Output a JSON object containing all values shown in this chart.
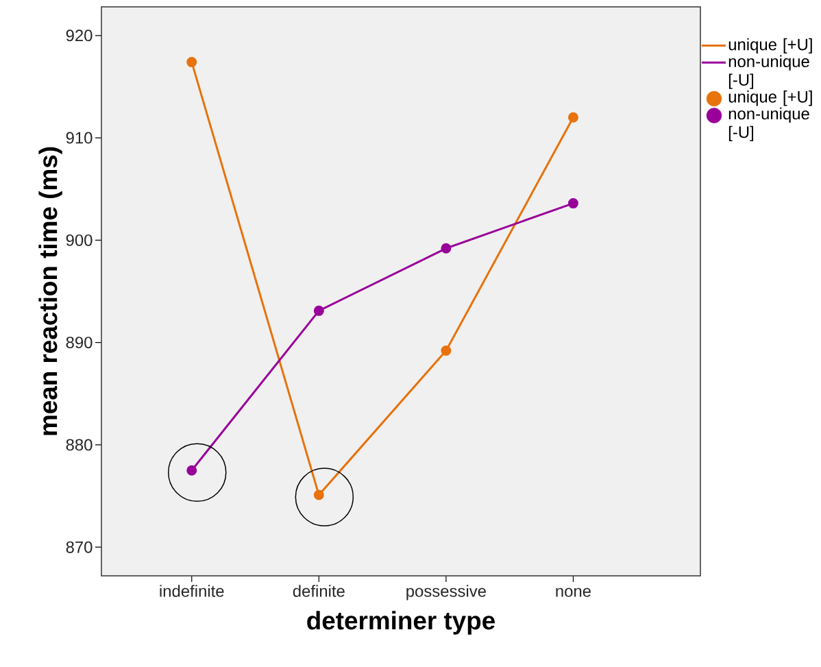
{
  "chart_data": {
    "type": "line",
    "xlabel": "determiner type",
    "ylabel": "mean reaction time (ms)",
    "categories": [
      "indefinite",
      "definite",
      "possessive",
      "none"
    ],
    "series": [
      {
        "name": "unique [+U]",
        "color": "#e8720c",
        "values": [
          917.4,
          875.1,
          889.2,
          912.0
        ]
      },
      {
        "name": "non-unique [-U]",
        "color": "#990099",
        "values": [
          877.5,
          893.1,
          899.2,
          903.6
        ]
      }
    ],
    "ylim": [
      867.2,
      922.8
    ],
    "yticks": [
      870,
      880,
      890,
      900,
      910,
      920
    ],
    "grid": false,
    "legend": "right",
    "marker": "circle",
    "line_style": "solid"
  }
}
